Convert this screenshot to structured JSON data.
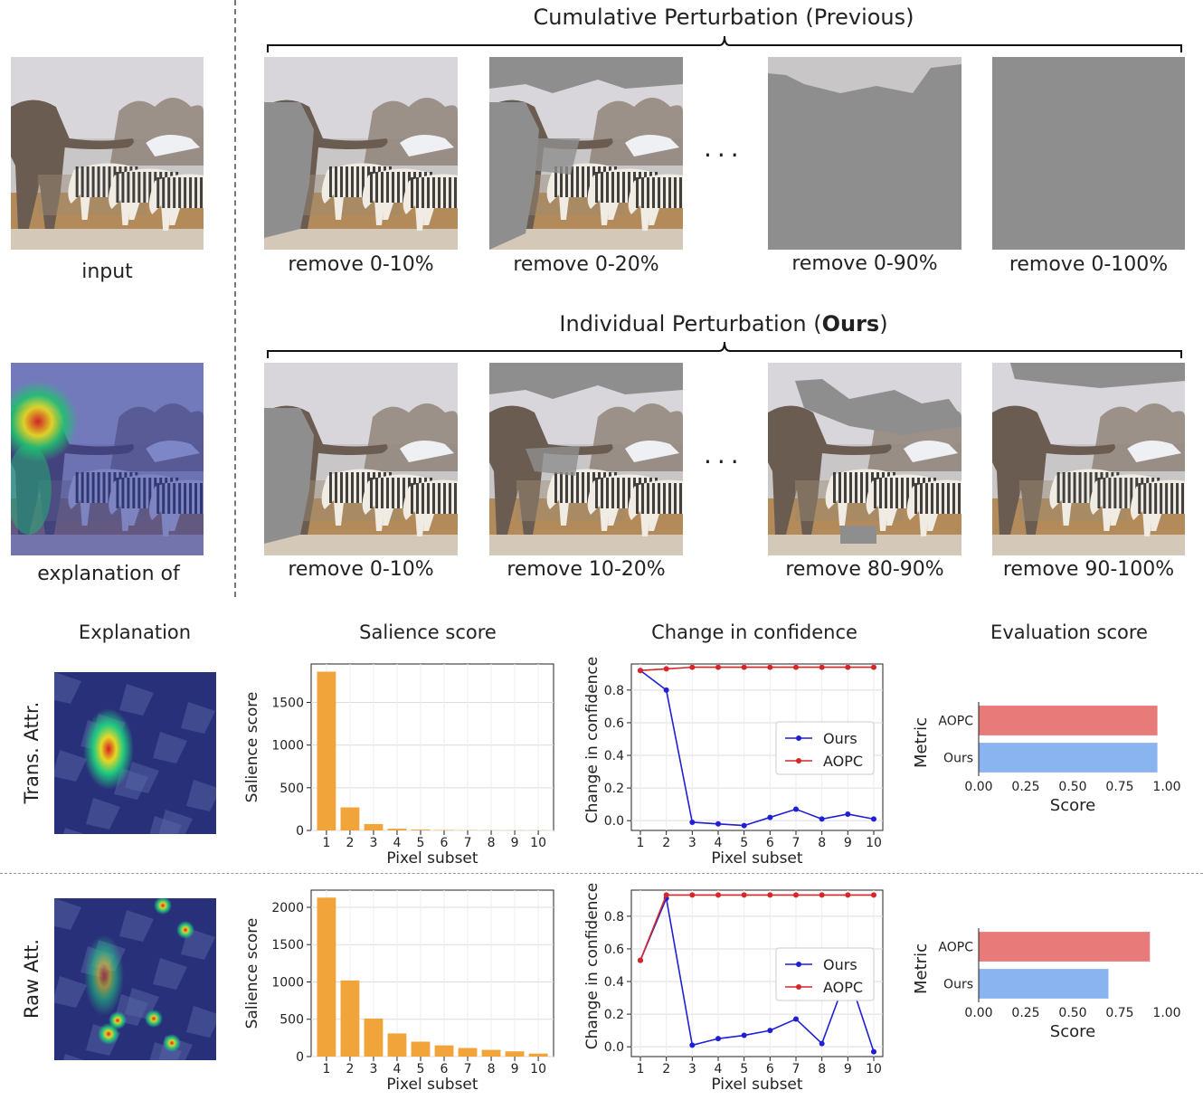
{
  "top": {
    "input_caption": "input",
    "explanation_caption": "explanation of",
    "cumulative_title": "Cumulative Perturbation (Previous)",
    "individual_title_prefix": "Individual Perturbation (",
    "individual_title_bold": "Ours",
    "individual_title_suffix": ")",
    "ellipsis": "···",
    "cumulative_captions": [
      "remove 0-10%",
      "remove 0-20%",
      "remove 0-90%",
      "remove 0-100%"
    ],
    "individual_captions": [
      "remove 0-10%",
      "remove 10-20%",
      "remove 80-90%",
      "remove 90-100%"
    ]
  },
  "bottom": {
    "col_titles": [
      "Explanation",
      "Salience score",
      "Change in confidence",
      "Evaluation score"
    ],
    "row_labels": [
      "Trans. Attr.",
      "Raw Att."
    ]
  },
  "colors": {
    "bar": "#f0a43a",
    "ours": "#1f1fd6",
    "aopc": "#d62728",
    "aopc_bar": "#e87a7a",
    "ours_bar": "#8ab4f0"
  },
  "chart_data": [
    {
      "type": "bar",
      "row": "Trans. Attr.",
      "title": "",
      "xlabel": "Pixel subset",
      "ylabel": "Salience score",
      "categories": [
        "1",
        "2",
        "3",
        "4",
        "5",
        "6",
        "7",
        "8",
        "9",
        "10"
      ],
      "values": [
        1860,
        270,
        75,
        20,
        10,
        5,
        3,
        2,
        2,
        2
      ],
      "ylim": [
        0,
        1950
      ],
      "yticks": [
        "0",
        "500",
        "1000",
        "1500"
      ]
    },
    {
      "type": "line",
      "row": "Trans. Attr.",
      "title": "",
      "xlabel": "Pixel subset",
      "ylabel": "Change in confidence",
      "x": [
        "1",
        "2",
        "3",
        "4",
        "5",
        "6",
        "7",
        "8",
        "9",
        "10"
      ],
      "series": [
        {
          "name": "Ours",
          "values": [
            0.92,
            0.8,
            -0.01,
            -0.02,
            -0.03,
            0.02,
            0.07,
            0.01,
            0.04,
            0.01
          ]
        },
        {
          "name": "AOPC",
          "values": [
            0.92,
            0.93,
            0.94,
            0.94,
            0.94,
            0.94,
            0.94,
            0.94,
            0.94,
            0.94
          ]
        }
      ],
      "ylim": [
        -0.06,
        0.96
      ],
      "yticks": [
        "0.0",
        "0.2",
        "0.4",
        "0.6",
        "0.8"
      ],
      "legend": "center-right"
    },
    {
      "type": "bar",
      "orientation": "horizontal",
      "row": "Trans. Attr.",
      "title": "",
      "xlabel": "Score",
      "ylabel": "Metric",
      "categories": [
        "AOPC",
        "Ours"
      ],
      "values": [
        0.95,
        0.95
      ],
      "xlim": [
        0,
        1
      ],
      "xticks": [
        "0.00",
        "0.25",
        "0.50",
        "0.75",
        "1.00"
      ]
    },
    {
      "type": "bar",
      "row": "Raw Att.",
      "title": "",
      "xlabel": "Pixel subset",
      "ylabel": "Salience score",
      "categories": [
        "1",
        "2",
        "3",
        "4",
        "5",
        "6",
        "7",
        "8",
        "9",
        "10"
      ],
      "values": [
        2130,
        1020,
        510,
        310,
        200,
        150,
        115,
        90,
        70,
        40
      ],
      "ylim": [
        0,
        2230
      ],
      "yticks": [
        "0",
        "500",
        "1000",
        "1500",
        "2000"
      ]
    },
    {
      "type": "line",
      "row": "Raw Att.",
      "title": "",
      "xlabel": "Pixel subset",
      "ylabel": "Change in confidence",
      "x": [
        "1",
        "2",
        "3",
        "4",
        "5",
        "6",
        "7",
        "8",
        "9",
        "10"
      ],
      "series": [
        {
          "name": "Ours",
          "values": [
            0.53,
            0.91,
            0.01,
            0.05,
            0.07,
            0.1,
            0.17,
            0.02,
            0.45,
            -0.03
          ]
        },
        {
          "name": "AOPC",
          "values": [
            0.53,
            0.93,
            0.93,
            0.93,
            0.93,
            0.93,
            0.93,
            0.93,
            0.93,
            0.93
          ]
        }
      ],
      "ylim": [
        -0.06,
        0.96
      ],
      "yticks": [
        "0.0",
        "0.2",
        "0.4",
        "0.6",
        "0.8"
      ],
      "legend": "center-right"
    },
    {
      "type": "bar",
      "orientation": "horizontal",
      "row": "Raw Att.",
      "title": "",
      "xlabel": "Score",
      "ylabel": "Metric",
      "categories": [
        "AOPC",
        "Ours"
      ],
      "values": [
        0.91,
        0.69
      ],
      "xlim": [
        0,
        1
      ],
      "xticks": [
        "0.00",
        "0.25",
        "0.50",
        "0.75",
        "1.00"
      ]
    }
  ]
}
